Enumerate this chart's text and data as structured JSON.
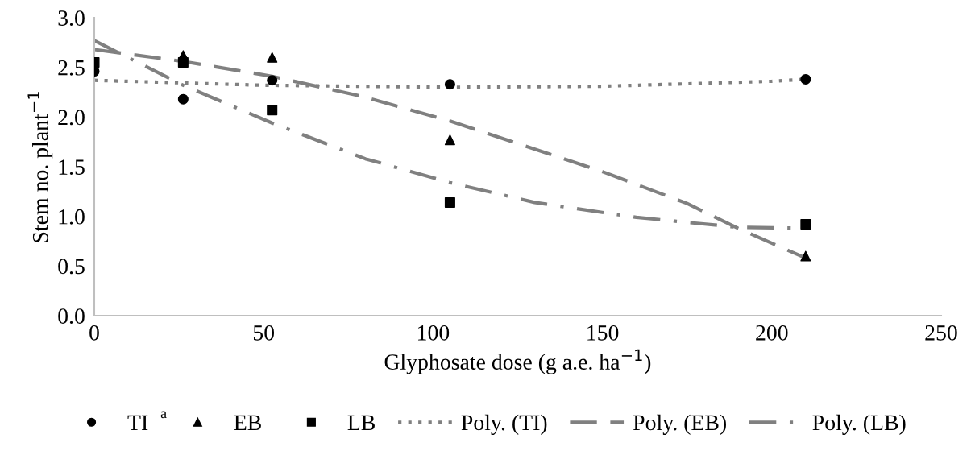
{
  "chart_data": {
    "type": "scatter",
    "xlabel": "Glyphosate dose (g a.e. ha$^{−1}$)",
    "ylabel": "Stem no. plant$^{−1}$",
    "xlim": [
      0,
      250
    ],
    "xticks": [
      0,
      50,
      100,
      150,
      200,
      250
    ],
    "ylim": [
      0,
      3
    ],
    "yticks": [
      {
        "value": 0,
        "label": "0.0"
      },
      {
        "value": 0.5,
        "label": "0.5"
      },
      {
        "value": 1,
        "label": "1.0"
      },
      {
        "value": 1.5,
        "label": "1.5"
      },
      {
        "value": 2,
        "label": "2.0"
      },
      {
        "value": 2.5,
        "label": "2.5"
      },
      {
        "value": 3,
        "label": "3.0"
      }
    ],
    "grid": false,
    "legend": "bottom",
    "annotations": [
      "a"
    ],
    "series": [
      {
        "name": "TI",
        "marker": "circle",
        "color": "#000000",
        "x": [
          0,
          26.25,
          52.5,
          105,
          210
        ],
        "values": [
          2.46,
          2.18,
          2.37,
          2.33,
          2.38
        ]
      },
      {
        "name": "EB",
        "marker": "triangle",
        "color": "#000000",
        "x": [
          26.25,
          52.5,
          105,
          210
        ],
        "values": [
          2.62,
          2.6,
          1.77,
          0.6
        ]
      },
      {
        "name": "LB",
        "marker": "square",
        "color": "#000000",
        "x": [
          0,
          26.25,
          52.5,
          105,
          210
        ],
        "values": [
          2.55,
          2.55,
          2.07,
          1.14,
          0.92
        ]
      },
      {
        "name": "Poly. (TI)",
        "type": "line",
        "marker": "none",
        "line_style": "dotted",
        "color": "#808080",
        "x": [
          0,
          50,
          105,
          150,
          200,
          210
        ],
        "values": [
          2.37,
          2.32,
          2.3,
          2.31,
          2.36,
          2.38
        ]
      },
      {
        "name": "Poly. (EB)",
        "type": "line",
        "marker": "none",
        "line_style": "dashed",
        "color": "#808080",
        "x": [
          0,
          26.25,
          52.5,
          80,
          105,
          150,
          175,
          190,
          210
        ],
        "values": [
          2.68,
          2.56,
          2.41,
          2.2,
          1.96,
          1.45,
          1.13,
          0.88,
          0.58
        ]
      },
      {
        "name": "Poly. (LB)",
        "type": "line",
        "marker": "none",
        "line_style": "dashdot",
        "color": "#808080",
        "x": [
          0,
          26.25,
          52.5,
          80,
          105,
          130,
          160,
          190,
          210
        ],
        "values": [
          2.77,
          2.32,
          1.94,
          1.58,
          1.34,
          1.14,
          0.99,
          0.89,
          0.88
        ]
      }
    ]
  }
}
